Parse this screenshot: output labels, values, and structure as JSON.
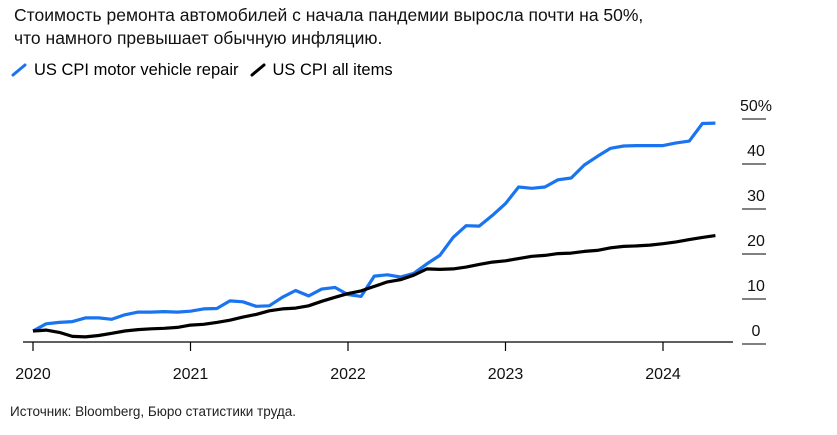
{
  "title": {
    "line1": "Стоимость ремонта автомобилей с начала пандемии выросла почти на 50%,",
    "line2": "что намного превышает обычную инфляцию."
  },
  "source": "Источник: Bloomberg, Бюро статистики труда.",
  "chart_data": {
    "type": "line",
    "title": "Стоимость ремонта автомобилей с начала пандемии выросла почти на 50%, что намного превышает обычную инфляцию.",
    "xlabel": "",
    "ylabel": "",
    "xlim": [
      2020.0,
      2024.4
    ],
    "ylim": [
      -3,
      53
    ],
    "y_ticks": [
      0,
      10,
      20,
      30,
      40,
      50
    ],
    "y_tick_labels": [
      "0",
      "10",
      "20",
      "30",
      "40",
      "50%"
    ],
    "x_ticks": [
      2020,
      2021,
      2022,
      2023,
      2024
    ],
    "x_tick_labels": [
      "2020",
      "2021",
      "2022",
      "2023",
      "2024"
    ],
    "legend_position": "top-left",
    "grid": false,
    "series": [
      {
        "name": "US CPI motor vehicle repair",
        "color": "#1a74ef",
        "x": [
          2020.0,
          2020.083,
          2020.167,
          2020.25,
          2020.333,
          2020.417,
          2020.5,
          2020.583,
          2020.667,
          2020.75,
          2020.833,
          2020.917,
          2021.0,
          2021.083,
          2021.167,
          2021.25,
          2021.333,
          2021.417,
          2021.5,
          2021.583,
          2021.667,
          2021.75,
          2021.833,
          2021.917,
          2022.0,
          2022.083,
          2022.167,
          2022.25,
          2022.333,
          2022.417,
          2022.5,
          2022.583,
          2022.667,
          2022.75,
          2022.833,
          2022.917,
          2023.0,
          2023.083,
          2023.167,
          2023.25,
          2023.333,
          2023.417,
          2023.5,
          2023.583,
          2023.667,
          2023.75,
          2023.833,
          2023.917,
          2024.0,
          2024.083,
          2024.167,
          2024.25,
          2024.333
        ],
        "values": [
          0,
          1.6,
          1.9,
          2.1,
          2.9,
          2.9,
          2.6,
          3.6,
          4.2,
          4.2,
          4.3,
          4.2,
          4.4,
          4.9,
          5.0,
          6.7,
          6.5,
          5.5,
          5.6,
          7.5,
          9.0,
          7.8,
          9.3,
          9.7,
          8.1,
          7.7,
          12.2,
          12.5,
          12.0,
          12.8,
          14.9,
          16.8,
          20.8,
          23.4,
          23.3,
          25.7,
          28.3,
          32.0,
          31.7,
          32.0,
          33.6,
          34.0,
          36.9,
          38.8,
          40.6,
          41.1,
          41.2,
          41.2,
          41.2,
          41.8,
          42.2,
          46.1,
          46.2
        ]
      },
      {
        "name": "US CPI all items",
        "color": "#000000",
        "x": [
          2020.0,
          2020.083,
          2020.167,
          2020.25,
          2020.333,
          2020.417,
          2020.5,
          2020.583,
          2020.667,
          2020.75,
          2020.833,
          2020.917,
          2021.0,
          2021.083,
          2021.167,
          2021.25,
          2021.333,
          2021.417,
          2021.5,
          2021.583,
          2021.667,
          2021.75,
          2021.833,
          2021.917,
          2022.0,
          2022.083,
          2022.167,
          2022.25,
          2022.333,
          2022.417,
          2022.5,
          2022.583,
          2022.667,
          2022.75,
          2022.833,
          2022.917,
          2023.0,
          2023.083,
          2023.167,
          2023.25,
          2023.333,
          2023.417,
          2023.5,
          2023.583,
          2023.667,
          2023.75,
          2023.833,
          2023.917,
          2024.0,
          2024.083,
          2024.167,
          2024.25,
          2024.333
        ],
        "values": [
          0,
          0.2,
          -0.3,
          -1.2,
          -1.3,
          -1.0,
          -0.5,
          0,
          0.3,
          0.5,
          0.6,
          0.8,
          1.3,
          1.5,
          1.9,
          2.4,
          3.1,
          3.7,
          4.5,
          4.9,
          5.1,
          5.6,
          6.6,
          7.5,
          8.3,
          8.9,
          9.9,
          10.9,
          11.4,
          12.4,
          13.8,
          13.7,
          13.8,
          14.2,
          14.8,
          15.3,
          15.6,
          16.1,
          16.6,
          16.8,
          17.2,
          17.3,
          17.7,
          17.9,
          18.5,
          18.8,
          18.9,
          19.1,
          19.4,
          19.8,
          20.3,
          20.8,
          21.2
        ]
      }
    ]
  }
}
